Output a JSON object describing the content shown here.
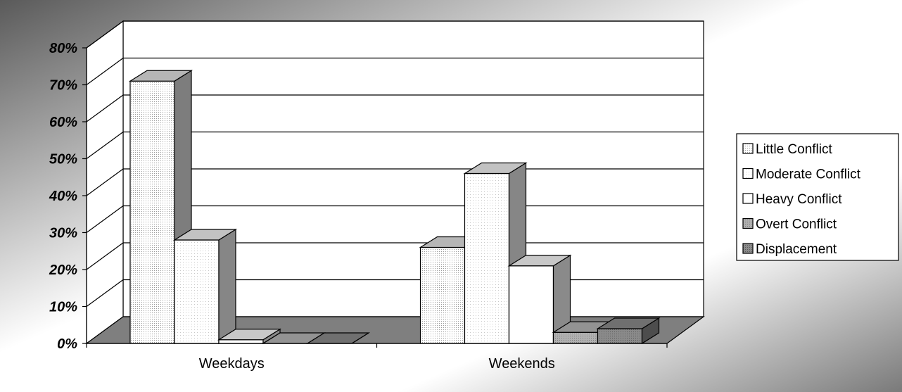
{
  "chart_data": {
    "type": "bar",
    "title": "",
    "xlabel": "",
    "ylabel": "",
    "categories": [
      "Weekdays",
      "Weekends"
    ],
    "ylim": [
      0,
      80
    ],
    "ytick_labels": [
      "0%",
      "10%",
      "20%",
      "30%",
      "40%",
      "50%",
      "60%",
      "70%",
      "80%"
    ],
    "ytick_values": [
      0,
      10,
      20,
      30,
      40,
      50,
      60,
      70,
      80
    ],
    "grid": true,
    "legend_position": "right",
    "series": [
      {
        "name": "Little Conflict",
        "values": [
          71,
          26
        ],
        "color": "#e4e4e4"
      },
      {
        "name": "Moderate Conflict",
        "values": [
          28,
          46
        ],
        "color": "#f3f3f3"
      },
      {
        "name": "Heavy Conflict",
        "values": [
          1,
          21
        ],
        "color": "#fafafa"
      },
      {
        "name": "Overt Conflict",
        "values": [
          0,
          3
        ],
        "color": "#b8b8b8"
      },
      {
        "name": "Displacement",
        "values": [
          0,
          4
        ],
        "color": "#8c8c8c"
      }
    ]
  }
}
